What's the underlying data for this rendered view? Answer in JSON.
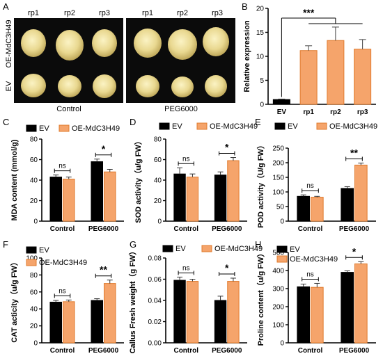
{
  "panel_letters": [
    "A",
    "B",
    "C",
    "D",
    "E",
    "F",
    "G",
    "H"
  ],
  "photo_panel": {
    "col_labels_left": [
      "rp1",
      "rp2",
      "rp3"
    ],
    "col_labels_right": [
      "rp1",
      "rp2",
      "rp3"
    ],
    "row_labels": [
      "OE-MdC3H49",
      "EV"
    ],
    "group_labels": [
      "Control",
      "PEG6000"
    ]
  },
  "colors": {
    "ev": "#000000",
    "oe": "#F5A46B",
    "oe_edge": "#E07B2E",
    "ev_small": "#000000"
  },
  "chart_data": [
    {
      "panel": "B",
      "type": "bar",
      "categories": [
        "EV",
        "rp1",
        "rp2",
        "rp3"
      ],
      "values": [
        1.0,
        11.2,
        13.3,
        11.5
      ],
      "errors": [
        0.1,
        1.0,
        2.8,
        2.0
      ],
      "ylabel": "Relative expression",
      "ylim": [
        0,
        20
      ],
      "yticks": [
        0,
        5,
        10,
        15,
        20
      ],
      "significance": "***"
    },
    {
      "panel": "C",
      "type": "bar",
      "categories": [
        "Control",
        "PEG6000"
      ],
      "series": [
        {
          "name": "EV",
          "values": [
            43,
            58
          ],
          "errors": [
            2,
            2.5
          ]
        },
        {
          "name": "OE-MdC3H49",
          "values": [
            41,
            48
          ],
          "errors": [
            2,
            2.5
          ]
        }
      ],
      "ylabel": "MDA content (mmol/g)",
      "ylim": [
        0,
        80
      ],
      "yticks": [
        0,
        20,
        40,
        60,
        80
      ],
      "significance": [
        "ns",
        "*"
      ]
    },
    {
      "panel": "D",
      "type": "bar",
      "categories": [
        "Control",
        "PEG6000"
      ],
      "series": [
        {
          "name": "EV",
          "values": [
            46,
            45
          ],
          "errors": [
            6,
            3
          ]
        },
        {
          "name": "OE-MdC3H49",
          "values": [
            43,
            59
          ],
          "errors": [
            3,
            3
          ]
        }
      ],
      "ylabel": "SOD activity（u/g FW）",
      "ylim": [
        0,
        80
      ],
      "yticks": [
        0,
        20,
        40,
        60,
        80
      ],
      "significance": [
        "ns",
        "*"
      ]
    },
    {
      "panel": "E",
      "type": "bar",
      "categories": [
        "Control",
        "PEG6000"
      ],
      "series": [
        {
          "name": "EV",
          "values": [
            85,
            112
          ],
          "errors": [
            5,
            6
          ]
        },
        {
          "name": "OE-MdC3H49",
          "values": [
            82,
            192
          ],
          "errors": [
            3,
            7
          ]
        }
      ],
      "ylabel": "POD activity（U/g FW）",
      "ylim": [
        0,
        250
      ],
      "yticks": [
        0,
        50,
        100,
        150,
        200,
        250
      ],
      "significance": [
        "ns",
        "**"
      ]
    },
    {
      "panel": "F",
      "type": "bar",
      "categories": [
        "Control",
        "PEG6000"
      ],
      "series": [
        {
          "name": "EV",
          "values": [
            48,
            50
          ],
          "errors": [
            2,
            2
          ]
        },
        {
          "name": "OE-MdC3H49",
          "values": [
            48.5,
            70
          ],
          "errors": [
            2,
            4
          ]
        }
      ],
      "ylabel": "CAT acticity（u/g FW）",
      "ylim": [
        0,
        100
      ],
      "yticks": [
        0,
        20,
        40,
        60,
        80,
        100
      ],
      "significance": [
        "ns",
        "**"
      ]
    },
    {
      "panel": "G",
      "type": "bar",
      "categories": [
        "Control",
        "PEG6000"
      ],
      "series": [
        {
          "name": "EV",
          "values": [
            0.059,
            0.04
          ],
          "errors": [
            0.003,
            0.004
          ]
        },
        {
          "name": "OE-MdC3H49",
          "values": [
            0.058,
            0.058
          ],
          "errors": [
            0.002,
            0.003
          ]
        }
      ],
      "ylabel": "Callus Fresh weight（g FW）",
      "ylim": [
        0,
        0.08
      ],
      "yticks": [
        0,
        0.02,
        0.04,
        0.06,
        0.08
      ],
      "ytick_labels": [
        "0.00",
        "0.02",
        "0.04",
        "0.06",
        "0.08"
      ],
      "significance": [
        "ns",
        "*"
      ]
    },
    {
      "panel": "H",
      "type": "bar",
      "categories": [
        "Control",
        "PEG6000"
      ],
      "series": [
        {
          "name": "EV",
          "values": [
            310,
            390
          ],
          "errors": [
            15,
            8
          ]
        },
        {
          "name": "OE-MdC3H49",
          "values": [
            307,
            437
          ],
          "errors": [
            22,
            12
          ]
        }
      ],
      "ylabel": "Proline content（u/g FW）",
      "ylim": [
        0,
        500
      ],
      "yticks": [
        0,
        100,
        200,
        300,
        400,
        500
      ],
      "significance": [
        "ns",
        "*"
      ]
    }
  ]
}
